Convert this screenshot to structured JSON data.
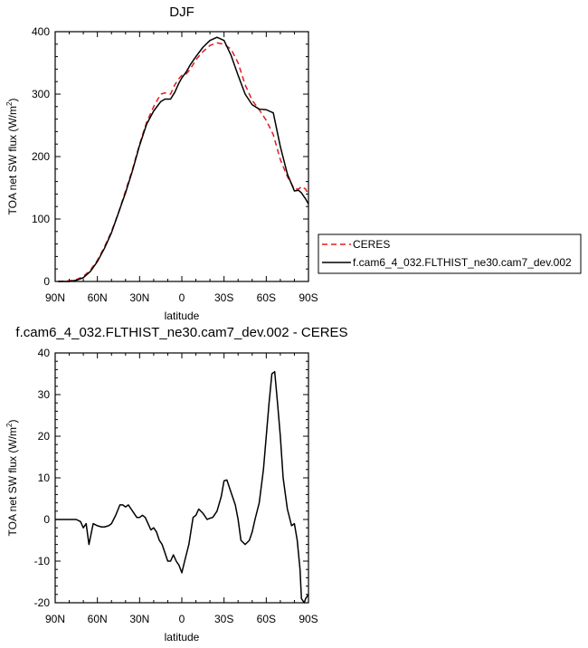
{
  "chart_data": [
    {
      "type": "line",
      "title": "DJF",
      "ylabel": "TOA net SW flux (W/m",
      "ylabel_sup": "2",
      "ylabel_close": ")",
      "xlabel": "latitude",
      "xlim": [
        90,
        -90
      ],
      "ylim": [
        0,
        400
      ],
      "xticks": [
        90,
        60,
        30,
        0,
        -30,
        -60,
        -90
      ],
      "xtick_labels": [
        "90N",
        "60N",
        "30N",
        "0",
        "30S",
        "60S",
        "90S"
      ],
      "yticks": [
        0,
        100,
        200,
        300,
        400
      ],
      "ytick_labels": [
        "0",
        "100",
        "200",
        "300",
        "400"
      ],
      "legend_placement": "outside-right",
      "series": [
        {
          "name": "CERES",
          "color": "#e31a1c",
          "dash": "dashed",
          "x": [
            88,
            80,
            75,
            70,
            65,
            60,
            55,
            50,
            45,
            40,
            35,
            30,
            25,
            20,
            15,
            12,
            8,
            5,
            2,
            0,
            -3,
            -6,
            -10,
            -15,
            -20,
            -25,
            -30,
            -35,
            -40,
            -45,
            -50,
            -55,
            -60,
            -65,
            -70,
            -75,
            -80,
            -83,
            -85,
            -88,
            -90
          ],
          "y": [
            0,
            1,
            3,
            8,
            18,
            34,
            55,
            80,
            110,
            145,
            180,
            220,
            255,
            280,
            300,
            302,
            300,
            315,
            325,
            330,
            332,
            340,
            355,
            368,
            378,
            382,
            380,
            372,
            350,
            315,
            290,
            275,
            258,
            235,
            195,
            168,
            148,
            148,
            152,
            148,
            138
          ]
        },
        {
          "name": "f.cam6_4_032.FLTHIST_ne30.cam7_dev.002",
          "color": "#000000",
          "dash": "solid",
          "x": [
            88,
            80,
            75,
            70,
            65,
            60,
            55,
            50,
            45,
            40,
            35,
            30,
            25,
            20,
            15,
            12,
            8,
            5,
            2,
            0,
            -3,
            -6,
            -10,
            -15,
            -20,
            -25,
            -30,
            -35,
            -40,
            -45,
            -50,
            -55,
            -60,
            -65,
            -70,
            -75,
            -80,
            -83,
            -85,
            -88,
            -90
          ],
          "y": [
            0,
            0,
            2,
            6,
            16,
            32,
            53,
            78,
            110,
            142,
            178,
            218,
            252,
            273,
            288,
            292,
            292,
            303,
            318,
            326,
            335,
            347,
            360,
            375,
            386,
            391,
            386,
            362,
            330,
            300,
            283,
            276,
            275,
            270,
            216,
            172,
            145,
            146,
            142,
            132,
            124
          ]
        }
      ]
    },
    {
      "type": "line",
      "title": "f.cam6_4_032.FLTHIST_ne30.cam7_dev.002 - CERES",
      "ylabel": "TOA net SW flux (W/m",
      "ylabel_sup": "2",
      "ylabel_close": ")",
      "xlabel": "latitude",
      "xlim": [
        90,
        -90
      ],
      "ylim": [
        -20,
        40
      ],
      "xticks": [
        90,
        60,
        30,
        0,
        -30,
        -60,
        -90
      ],
      "xtick_labels": [
        "90N",
        "60N",
        "30N",
        "0",
        "30S",
        "60S",
        "90S"
      ],
      "yticks": [
        -20,
        -10,
        0,
        10,
        20,
        30,
        40
      ],
      "ytick_labels": [
        "-20",
        "-10",
        "0",
        "10",
        "20",
        "30",
        "40"
      ],
      "series": [
        {
          "name": "",
          "color": "#000000",
          "dash": "solid",
          "x": [
            90,
            87,
            84,
            80,
            75,
            72,
            70,
            68,
            66,
            63,
            60,
            57,
            55,
            52,
            50,
            47,
            44,
            42,
            40,
            38,
            36,
            34,
            32,
            30,
            28,
            26,
            24,
            22,
            20,
            18,
            16,
            14,
            12,
            10,
            8,
            6,
            4,
            2,
            0,
            -2,
            -5,
            -8,
            -10,
            -12,
            -15,
            -18,
            -20,
            -22,
            -25,
            -28,
            -30,
            -32,
            -35,
            -38,
            -40,
            -42,
            -45,
            -48,
            -50,
            -52,
            -55,
            -58,
            -60,
            -62,
            -64,
            -66,
            -68,
            -70,
            -72,
            -75,
            -78,
            -80,
            -82,
            -84,
            -85,
            -87,
            -88,
            -90
          ],
          "y": [
            0,
            0,
            0,
            0,
            0,
            -0.5,
            -2,
            -1,
            -6,
            -1,
            -1.5,
            -1.8,
            -1.8,
            -1.5,
            -1,
            1,
            3.5,
            3.5,
            3,
            3.5,
            2.5,
            1.5,
            0.5,
            0.5,
            1,
            0.5,
            -1,
            -2.5,
            -2,
            -3,
            -5,
            -6,
            -8,
            -10,
            -10,
            -8.5,
            -10,
            -11,
            -12.8,
            -10,
            -6,
            0.5,
            1,
            2.5,
            1.5,
            0,
            0.3,
            0.5,
            2,
            5.5,
            9.3,
            9.5,
            6.5,
            3.5,
            0,
            -5,
            -6,
            -5,
            -3,
            0,
            4,
            12,
            20,
            28,
            35,
            35.5,
            28,
            20,
            10,
            2.5,
            -1.5,
            -1,
            -5,
            -12,
            -19,
            -20,
            -19,
            -18
          ]
        }
      ]
    }
  ]
}
